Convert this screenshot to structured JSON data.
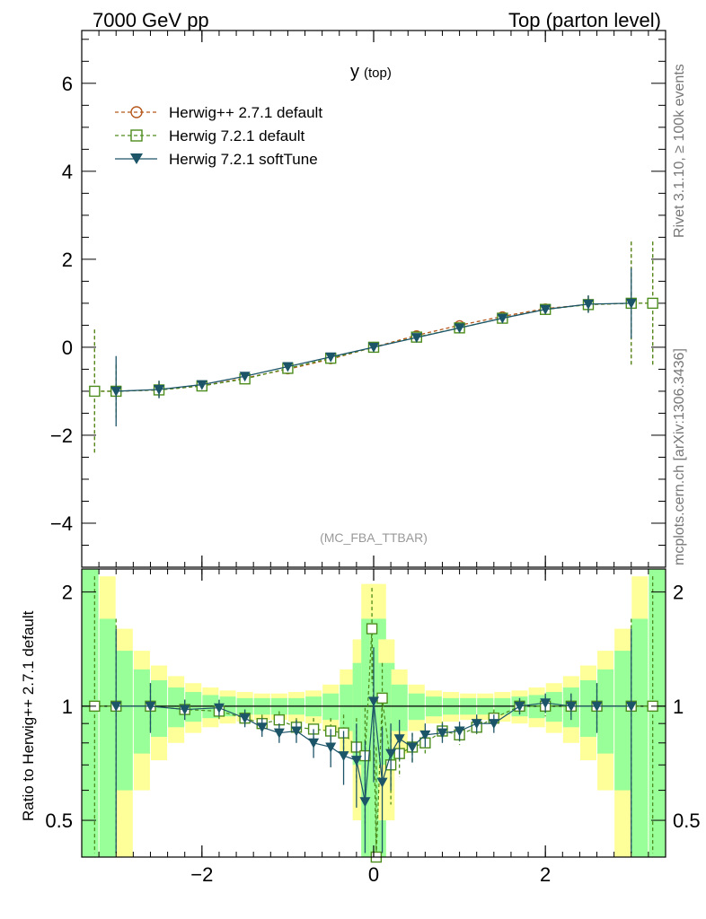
{
  "header": {
    "left": "7000 GeV pp",
    "right": "Top (parton level)"
  },
  "side_labels": {
    "rivet": "Rivet 3.1.10, ≥ 100k events",
    "mcplots": "mcplots.cern.ch [arXiv:1306.3436]"
  },
  "main_title": "y",
  "main_title_sub": "(top)",
  "analysis_tag": "(MC_FBA_TTBAR)",
  "ratio_ylabel": "Ratio to Herwig++ 2.7.1 default",
  "colors": {
    "herwigpp": "#b5571b",
    "herwig721": "#4c8c1c",
    "softtune": "#1c5468",
    "band_yellow": "#ffff99",
    "band_green": "#99ff99"
  },
  "chart_data": [
    {
      "type": "scatter",
      "panel": "main",
      "xlim": [
        -3.4,
        3.4
      ],
      "ylim": [
        -5.0,
        7.2
      ],
      "yticks": [
        -4,
        -2,
        0,
        2,
        4,
        6
      ],
      "ytick_labels": [
        "−4",
        "−2",
        "0",
        "2",
        "4",
        "6"
      ],
      "legend_position": "top-left",
      "series": [
        {
          "name": "Herwig++ 2.7.1 default",
          "marker": "circle",
          "x": [
            -3.25,
            -3.0,
            -2.5,
            -2.0,
            -1.5,
            -1.0,
            -0.5,
            0.0,
            0.5,
            1.0,
            1.5,
            2.0,
            2.5,
            3.0,
            3.25
          ],
          "y": [
            -1.0,
            -1.0,
            -0.97,
            -0.88,
            -0.7,
            -0.5,
            -0.27,
            0.0,
            0.27,
            0.5,
            0.7,
            0.88,
            0.97,
            1.0,
            1.0
          ],
          "err": [
            1.4,
            0.6,
            0.2,
            0.08,
            0.05,
            0.04,
            0.03,
            0.02,
            0.03,
            0.04,
            0.05,
            0.08,
            0.2,
            1.4,
            1.4
          ]
        },
        {
          "name": "Herwig 7.2.1 default",
          "marker": "square",
          "x": [
            -3.25,
            -3.0,
            -2.5,
            -2.0,
            -1.5,
            -1.0,
            -0.5,
            0.0,
            0.5,
            1.0,
            1.5,
            2.0,
            2.5,
            3.0,
            3.25
          ],
          "y": [
            -1.0,
            -1.0,
            -0.97,
            -0.88,
            -0.72,
            -0.48,
            -0.25,
            0.0,
            0.23,
            0.44,
            0.66,
            0.86,
            0.97,
            1.0,
            1.0
          ],
          "err": [
            1.4,
            0.6,
            0.2,
            0.08,
            0.05,
            0.04,
            0.03,
            0.02,
            0.03,
            0.04,
            0.05,
            0.08,
            0.2,
            1.4,
            1.4
          ]
        },
        {
          "name": "Herwig 7.2.1 softTune",
          "marker": "triangle-down",
          "x": [
            -3.0,
            -2.5,
            -2.0,
            -1.5,
            -1.0,
            -0.5,
            0.0,
            0.5,
            1.0,
            1.5,
            2.0,
            2.5,
            3.0
          ],
          "y": [
            -1.0,
            -0.96,
            -0.85,
            -0.66,
            -0.44,
            -0.22,
            0.0,
            0.22,
            0.44,
            0.66,
            0.86,
            0.98,
            1.0
          ],
          "err": [
            0.8,
            0.2,
            0.08,
            0.05,
            0.04,
            0.03,
            0.02,
            0.03,
            0.04,
            0.05,
            0.08,
            0.2,
            0.8
          ]
        }
      ]
    },
    {
      "type": "scatter",
      "panel": "ratio",
      "xlim": [
        -3.4,
        3.4
      ],
      "ylim": [
        0.4,
        2.3
      ],
      "xticks": [
        -2,
        0,
        2
      ],
      "xtick_labels": [
        "−2",
        "0",
        "2"
      ],
      "yticks": [
        0.5,
        1,
        2
      ],
      "ytick_labels": [
        "0.5",
        "1",
        "2"
      ],
      "ylabel": "Ratio to Herwig++ 2.7.1 default",
      "band": {
        "x": [
          -3.3,
          -3.1,
          -2.9,
          -2.7,
          -2.5,
          -2.3,
          -2.1,
          -1.9,
          -1.7,
          -1.5,
          -1.3,
          -1.1,
          -0.9,
          -0.7,
          -0.5,
          -0.3,
          -0.15,
          -0.05,
          0.05,
          0.15,
          0.3,
          0.5,
          0.7,
          0.9,
          1.1,
          1.3,
          1.5,
          1.7,
          1.9,
          2.1,
          2.3,
          2.5,
          2.7,
          2.9,
          3.1,
          3.3
        ],
        "yellow_half": [
          1.3,
          1.2,
          0.6,
          0.4,
          0.28,
          0.2,
          0.15,
          0.12,
          0.1,
          0.09,
          0.08,
          0.08,
          0.09,
          0.1,
          0.14,
          0.25,
          0.5,
          1.1,
          1.1,
          0.5,
          0.25,
          0.14,
          0.1,
          0.09,
          0.08,
          0.08,
          0.09,
          0.1,
          0.12,
          0.15,
          0.2,
          0.28,
          0.4,
          0.6,
          1.2,
          1.3
        ],
        "green_half": [
          1.3,
          0.7,
          0.4,
          0.25,
          0.17,
          0.12,
          0.09,
          0.07,
          0.06,
          0.05,
          0.05,
          0.05,
          0.05,
          0.06,
          0.08,
          0.14,
          0.3,
          0.7,
          0.7,
          0.3,
          0.14,
          0.08,
          0.06,
          0.05,
          0.05,
          0.05,
          0.05,
          0.06,
          0.07,
          0.09,
          0.12,
          0.17,
          0.25,
          0.4,
          0.7,
          1.3
        ]
      },
      "series": [
        {
          "name": "Herwig 7.2.1 default",
          "marker": "square",
          "x": [
            -3.25,
            -3.0,
            -2.6,
            -2.2,
            -1.8,
            -1.5,
            -1.3,
            -1.1,
            -0.9,
            -0.7,
            -0.5,
            -0.35,
            -0.2,
            -0.1,
            -0.02,
            0.03,
            0.1,
            0.2,
            0.3,
            0.45,
            0.6,
            0.8,
            1.0,
            1.2,
            1.4,
            1.7,
            2.0,
            2.3,
            2.6,
            3.0,
            3.25
          ],
          "y": [
            1.0,
            1.0,
            1.0,
            0.98,
            0.97,
            0.93,
            0.9,
            0.92,
            0.88,
            0.87,
            0.86,
            0.85,
            0.78,
            0.74,
            1.6,
            0.38,
            1.05,
            0.7,
            0.75,
            0.78,
            0.8,
            0.86,
            0.84,
            0.88,
            0.93,
            1.0,
            1.0,
            1.0,
            1.0,
            1.0,
            1.0
          ],
          "err": [
            1.2,
            0.7,
            0.15,
            0.06,
            0.05,
            0.05,
            0.05,
            0.05,
            0.05,
            0.06,
            0.07,
            0.1,
            0.15,
            0.25,
            0.45,
            0.4,
            0.25,
            0.15,
            0.1,
            0.07,
            0.06,
            0.05,
            0.05,
            0.05,
            0.05,
            0.05,
            0.06,
            0.08,
            0.15,
            0.7,
            1.2
          ]
        },
        {
          "name": "Herwig 7.2.1 softTune",
          "marker": "triangle-down",
          "x": [
            -3.0,
            -2.6,
            -2.2,
            -1.8,
            -1.5,
            -1.3,
            -1.1,
            -0.9,
            -0.7,
            -0.5,
            -0.35,
            -0.2,
            -0.1,
            0.0,
            0.1,
            0.2,
            0.3,
            0.45,
            0.6,
            0.8,
            1.0,
            1.2,
            1.4,
            1.7,
            2.0,
            2.3,
            2.6,
            3.0
          ],
          "y": [
            1.0,
            1.0,
            0.98,
            0.99,
            0.93,
            0.88,
            0.85,
            0.86,
            0.8,
            0.78,
            0.74,
            0.72,
            0.56,
            1.03,
            0.63,
            0.75,
            0.82,
            0.78,
            0.84,
            0.85,
            0.86,
            0.9,
            0.9,
            1.0,
            1.02,
            1.0,
            1.0,
            1.0
          ],
          "err": [
            0.6,
            0.15,
            0.06,
            0.05,
            0.05,
            0.05,
            0.05,
            0.06,
            0.07,
            0.09,
            0.12,
            0.18,
            0.25,
            0.4,
            0.25,
            0.15,
            0.1,
            0.07,
            0.06,
            0.05,
            0.05,
            0.05,
            0.05,
            0.05,
            0.06,
            0.08,
            0.15,
            0.6
          ]
        }
      ]
    }
  ]
}
